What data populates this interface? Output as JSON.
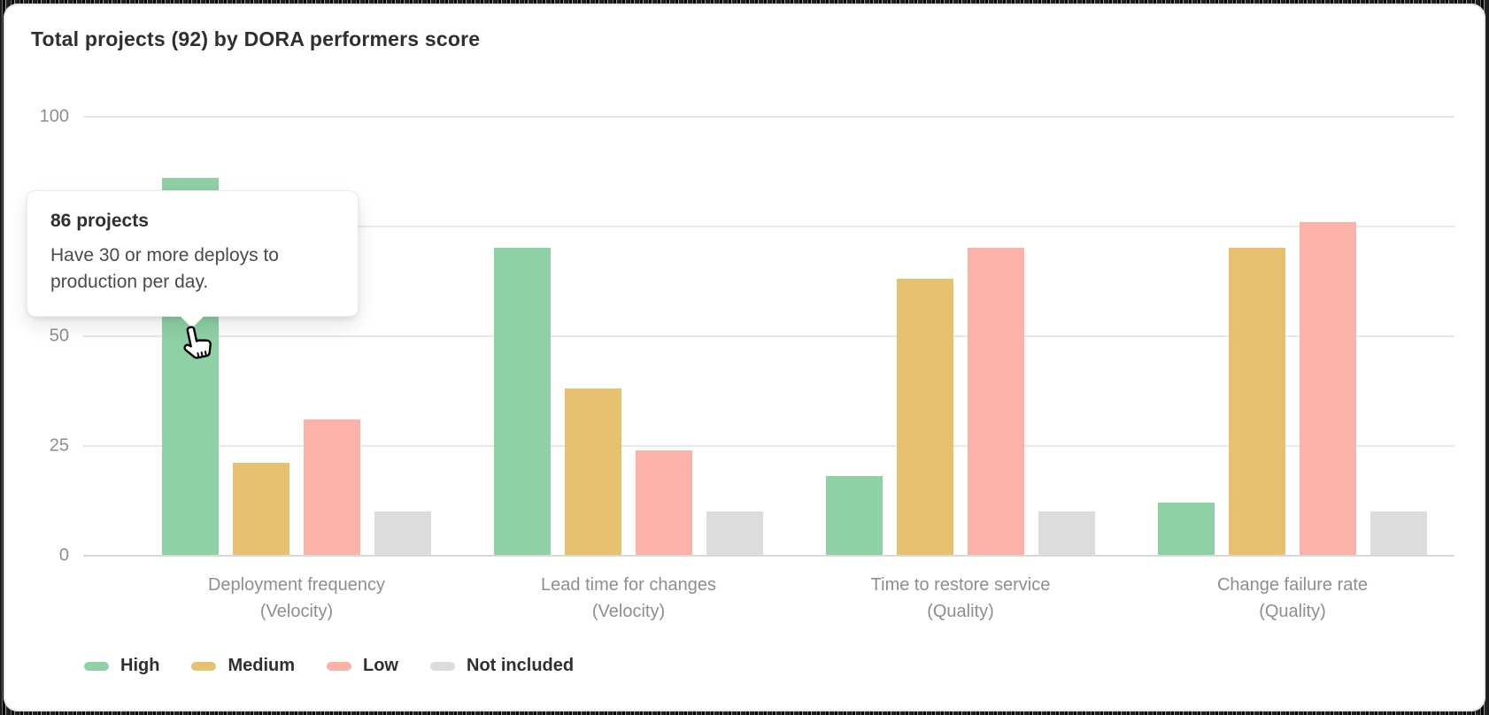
{
  "title": "Total projects (92) by DORA performers score",
  "tooltip": {
    "title": "86 projects",
    "body": "Have 30 or more deploys to production per day."
  },
  "chart_data": {
    "type": "bar",
    "title": "Total projects (92) by DORA performers score",
    "total_projects": 92,
    "categories": [
      [
        "Deployment frequency",
        "(Velocity)"
      ],
      [
        "Lead time for changes",
        "(Velocity)"
      ],
      [
        "Time to restore service",
        "(Quality)"
      ],
      [
        "Change failure rate",
        "(Quality)"
      ]
    ],
    "series": [
      {
        "name": "High",
        "color": "#8ed1a4",
        "values": [
          86,
          70,
          18,
          12
        ]
      },
      {
        "name": "Medium",
        "color": "#e7c070",
        "values": [
          21,
          38,
          63,
          70
        ]
      },
      {
        "name": "Low",
        "color": "#fcb2a9",
        "values": [
          31,
          24,
          70,
          76
        ]
      },
      {
        "name": "Not included",
        "color": "#dcdcdc",
        "values": [
          10,
          10,
          10,
          10
        ]
      }
    ],
    "y_ticks": [
      0,
      25,
      50,
      75,
      100
    ],
    "ylim": [
      0,
      100
    ],
    "grid": true,
    "legend_position": "bottom",
    "highlighted_bar": {
      "series": "High",
      "category": "Deployment frequency",
      "value": 86
    }
  }
}
